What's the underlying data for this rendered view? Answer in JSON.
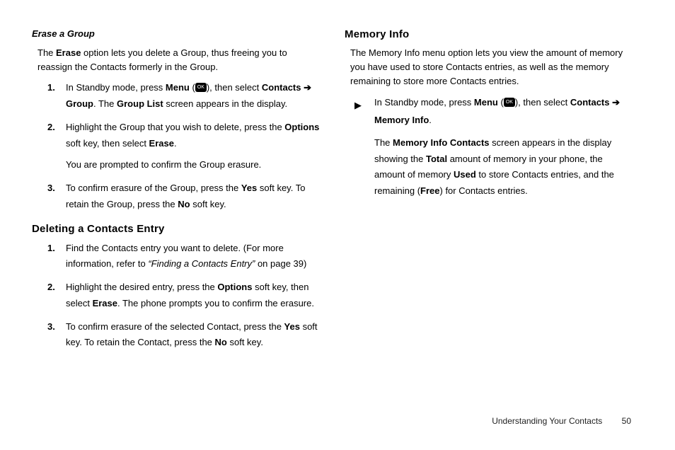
{
  "left": {
    "eraseGroup": {
      "heading": "Erase a Group",
      "intro_a": "The ",
      "intro_b": "Erase",
      "intro_c": " option lets you delete a Group, thus freeing you to reassign the Contacts formerly in the Group.",
      "step1": {
        "num": "1.",
        "a": "In Standby mode, press ",
        "b": "Menu",
        "c": " (",
        "d": "), then select ",
        "e": "Contacts",
        "f": "Group",
        "g": ". The ",
        "h": "Group List",
        "i": " screen appears in the display."
      },
      "step2": {
        "num": "2.",
        "a": "Highlight the Group that you wish to delete, press the ",
        "b": "Options",
        "c": " soft key, then select ",
        "d": "Erase",
        "e": ".",
        "sub": "You are prompted to confirm the Group erasure."
      },
      "step3": {
        "num": "3.",
        "a": "To confirm erasure of the Group, press the ",
        "b": "Yes",
        "c": " soft key. To retain the Group, press the ",
        "d": "No",
        "e": " soft key."
      }
    },
    "deleting": {
      "heading": "Deleting a Contacts Entry",
      "step1": {
        "num": "1.",
        "a": "Find the Contacts entry you want to delete. (For more information, refer to ",
        "b": "“Finding a Contacts Entry”",
        "c": "  on page 39)"
      },
      "step2": {
        "num": "2.",
        "a": "Highlight the desired entry, press the ",
        "b": "Options",
        "c": " soft key, then select ",
        "d": "Erase",
        "e": ". The phone prompts you to confirm the erasure."
      },
      "step3": {
        "num": "3.",
        "a": "To confirm erasure of the selected Contact, press the ",
        "b": "Yes",
        "c": " soft key. To retain the Contact, press the ",
        "d": "No",
        "e": " soft key."
      }
    }
  },
  "right": {
    "memoryInfo": {
      "heading": "Memory Info",
      "intro": "The Memory Info menu option lets you view the amount of memory you have used to store Contacts entries, as well as the memory remaining to store more Contacts entries.",
      "bullet": {
        "a": "In Standby mode, press ",
        "b": "Menu",
        "c": " (",
        "d": "), then select ",
        "e": "Contacts",
        "f": "Memory Info",
        "g": ".",
        "sub_a": "The ",
        "sub_b": "Memory Info Contacts",
        "sub_c": " screen appears in the display showing the ",
        "sub_d": "Total",
        "sub_e": " amount of memory in your phone, the amount of memory ",
        "sub_f": "Used",
        "sub_g": " to store Contacts entries, and the remaining (",
        "sub_h": "Free",
        "sub_i": ") for Contacts entries."
      }
    }
  },
  "footer": {
    "section": "Understanding Your Contacts",
    "page": "50"
  },
  "glyphs": {
    "arrow": "➔",
    "tri": "▶",
    "ok": "OK"
  }
}
